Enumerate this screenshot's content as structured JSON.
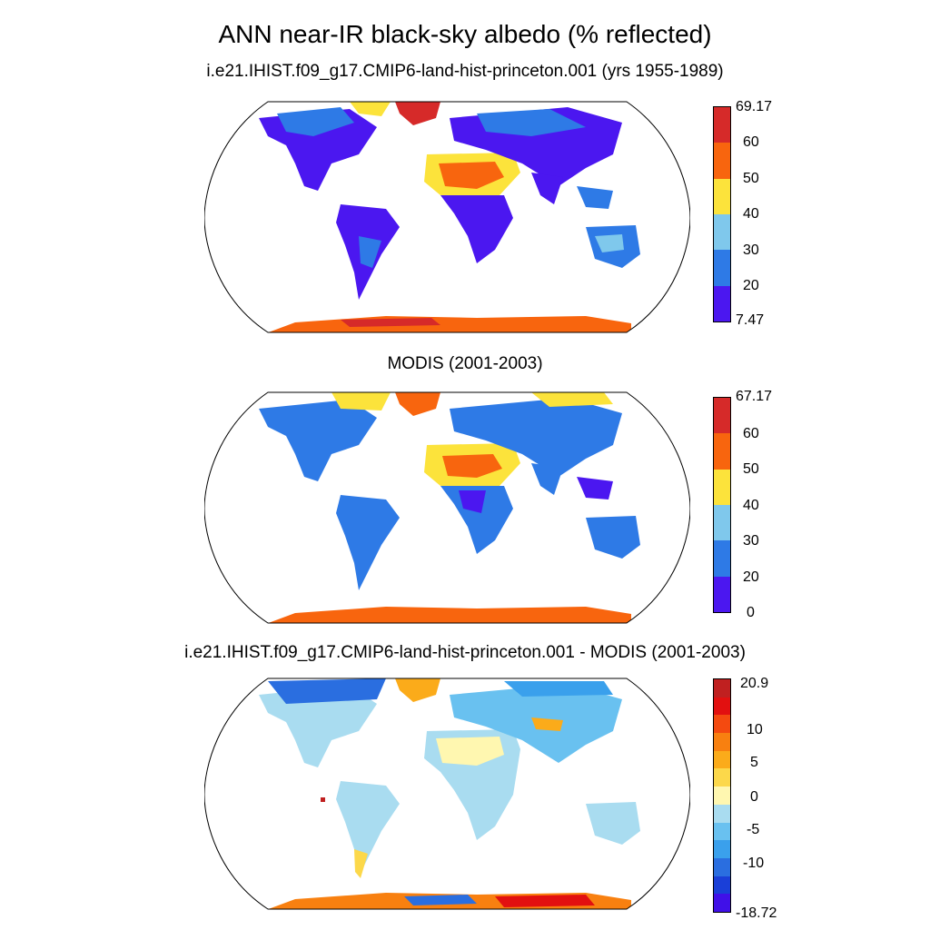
{
  "figure": {
    "title": "ANN near-IR black-sky albedo (% reflected)"
  },
  "panels": [
    {
      "subtitle": "i.e21.IHIST.f09_g17.CMIP6-land-hist-princeton.001 (yrs 1955-1989)",
      "colorbar": {
        "colors": [
          "#4b17f0",
          "#2e7ae6",
          "#7fc8ec",
          "#fce33b",
          "#f8650e",
          "#d62a29"
        ],
        "labels": [
          "7.47",
          "20",
          "30",
          "40",
          "50",
          "60",
          "69.17"
        ]
      }
    },
    {
      "subtitle": "MODIS (2001-2003)",
      "colorbar": {
        "colors": [
          "#4b17f0",
          "#2e7ae6",
          "#7fc8ec",
          "#fce33b",
          "#f8650e",
          "#d62a29"
        ],
        "labels": [
          "0",
          "20",
          "30",
          "40",
          "50",
          "60",
          "67.17"
        ]
      }
    },
    {
      "subtitle": "i.e21.IHIST.f09_g17.CMIP6-land-hist-princeton.001 - MODIS (2001-2003)",
      "colorbar": {
        "colors": [
          "#4010e8",
          "#1a3fd8",
          "#2a6ee0",
          "#3aa0ec",
          "#69c1f0",
          "#a9dcf0",
          "#fff7b0",
          "#fcd84a",
          "#fbab1a",
          "#f88010",
          "#f44a10",
          "#e21010",
          "#c02020"
        ],
        "labels": [
          "-18.72",
          "-10",
          "-5",
          "0",
          "5",
          "10",
          "20.9"
        ]
      }
    }
  ]
}
